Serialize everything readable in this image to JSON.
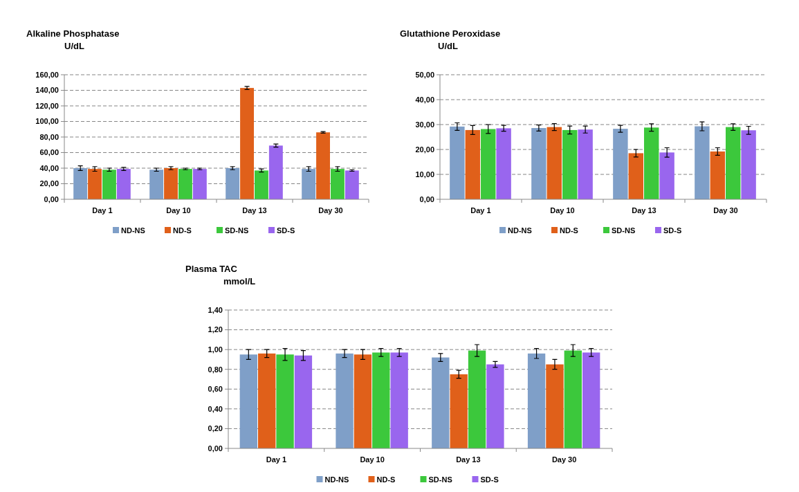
{
  "chart_data": [
    {
      "type": "bar",
      "title": "Alkaline Phosphatase",
      "subtitle": "U/dL",
      "categories": [
        "Day 1",
        "Day 10",
        "Day 13",
        "Day 30"
      ],
      "ylim": [
        0,
        160
      ],
      "yticks": [
        {
          "value": 0,
          "label": "0,00"
        },
        {
          "value": 20,
          "label": "20,00"
        },
        {
          "value": 40,
          "label": "40,00"
        },
        {
          "value": 60,
          "label": "60,00"
        },
        {
          "value": 80,
          "label": "80,00"
        },
        {
          "value": 100,
          "label": "100,00"
        },
        {
          "value": 120,
          "label": "120,00"
        },
        {
          "value": 140,
          "label": "140,00"
        },
        {
          "value": 160,
          "label": "160,00"
        }
      ],
      "grid": "y",
      "legend": "bottom",
      "series": [
        {
          "name": "ND-NS",
          "color": "#7f9fc8",
          "values": [
            40,
            38,
            40,
            39
          ],
          "errors": [
            3,
            2,
            2,
            3
          ]
        },
        {
          "name": "ND-S",
          "color": "#e0601a",
          "values": [
            39,
            40,
            143,
            86
          ],
          "errors": [
            3,
            2,
            2,
            1
          ]
        },
        {
          "name": "SD-NS",
          "color": "#3cc83c",
          "values": [
            38,
            39,
            37,
            39
          ],
          "errors": [
            2,
            1,
            2,
            3
          ]
        },
        {
          "name": "SD-S",
          "color": "#9966ee",
          "values": [
            39,
            39,
            69,
            37
          ],
          "errors": [
            2,
            1,
            2,
            1
          ]
        }
      ]
    },
    {
      "type": "bar",
      "title": "Glutathione Peroxidase",
      "subtitle": "U/dL",
      "categories": [
        "Day 1",
        "Day 10",
        "Day 13",
        "Day 30"
      ],
      "ylim": [
        0,
        50
      ],
      "yticks": [
        {
          "value": 0,
          "label": "0,00"
        },
        {
          "value": 10,
          "label": "10,00"
        },
        {
          "value": 20,
          "label": "20,00"
        },
        {
          "value": 30,
          "label": "30,00"
        },
        {
          "value": 40,
          "label": "40,00"
        },
        {
          "value": 50,
          "label": "50,00"
        }
      ],
      "grid": "y",
      "legend": "bottom",
      "series": [
        {
          "name": "ND-NS",
          "color": "#7f9fc8",
          "values": [
            29.2,
            28.6,
            28.3,
            29.3
          ],
          "errors": [
            1.5,
            1.2,
            1.4,
            1.8
          ]
        },
        {
          "name": "ND-S",
          "color": "#e0601a",
          "values": [
            27.8,
            29,
            18.5,
            19.2
          ],
          "errors": [
            1.8,
            1.4,
            1.5,
            1.5
          ]
        },
        {
          "name": "SD-NS",
          "color": "#3cc83c",
          "values": [
            28.2,
            27.8,
            28.8,
            29
          ],
          "errors": [
            1.8,
            1.6,
            1.5,
            1.3
          ]
        },
        {
          "name": "SD-S",
          "color": "#9966ee",
          "values": [
            28.5,
            28,
            18.8,
            27.7
          ],
          "errors": [
            1.2,
            1.4,
            1.9,
            1.6
          ]
        }
      ]
    },
    {
      "type": "bar",
      "title": "Plasma TAC",
      "subtitle": "mmol/L",
      "categories": [
        "Day 1",
        "Day 10",
        "Day 13",
        "Day 30"
      ],
      "ylim": [
        0,
        1.4
      ],
      "yticks": [
        {
          "value": 0,
          "label": "0,00"
        },
        {
          "value": 0.2,
          "label": "0,20"
        },
        {
          "value": 0.4,
          "label": "0,40"
        },
        {
          "value": 0.6,
          "label": "0,60"
        },
        {
          "value": 0.8,
          "label": "0,80"
        },
        {
          "value": 1,
          "label": "1,00"
        },
        {
          "value": 1.2,
          "label": "1,20"
        },
        {
          "value": 1.4,
          "label": "1,40"
        }
      ],
      "grid": "y",
      "legend": "bottom",
      "series": [
        {
          "name": "ND-NS",
          "color": "#7f9fc8",
          "values": [
            0.95,
            0.96,
            0.92,
            0.96
          ],
          "errors": [
            0.05,
            0.04,
            0.04,
            0.05
          ]
        },
        {
          "name": "ND-S",
          "color": "#e0601a",
          "values": [
            0.96,
            0.95,
            0.75,
            0.85
          ],
          "errors": [
            0.04,
            0.05,
            0.04,
            0.05
          ]
        },
        {
          "name": "SD-NS",
          "color": "#3cc83c",
          "values": [
            0.95,
            0.97,
            0.99,
            0.99
          ],
          "errors": [
            0.06,
            0.04,
            0.06,
            0.06
          ]
        },
        {
          "name": "SD-S",
          "color": "#9966ee",
          "values": [
            0.94,
            0.97,
            0.85,
            0.97
          ],
          "errors": [
            0.05,
            0.04,
            0.03,
            0.04
          ]
        }
      ]
    }
  ]
}
